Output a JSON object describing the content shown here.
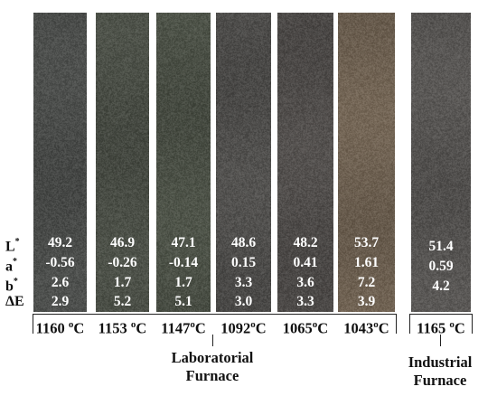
{
  "row_labels": {
    "L": "L",
    "a": "a",
    "b": "b",
    "dE": "ΔE",
    "star": "*"
  },
  "tiles": [
    {
      "L": "49.2",
      "a": "-0.56",
      "b": "2.6",
      "dE": "2.9",
      "temp": "1160",
      "unit": "C",
      "deg": "o",
      "color": "#4a4c4a"
    },
    {
      "L": "46.9",
      "a": "-0.26",
      "b": "1.7",
      "dE": "5.2",
      "temp": "1153",
      "unit": "C",
      "deg": "o",
      "color": "#4a4e46"
    },
    {
      "L": "47.1",
      "a": "-0.14",
      "b": "1.7",
      "dE": "5.1",
      "temp": "1147",
      "unit": "C",
      "deg": "o",
      "color": "#4b5046"
    },
    {
      "L": "48.6",
      "a": "0.15",
      "b": "3.3",
      "dE": "3.0",
      "temp": "1092",
      "unit": "C",
      "deg": "o",
      "color": "#4f4e4c"
    },
    {
      "L": "48.2",
      "a": "0.41",
      "b": "3.6",
      "dE": "3.3",
      "temp": "1065",
      "unit": "C",
      "deg": "o",
      "color": "#504d4b"
    },
    {
      "L": "53.7",
      "a": "1.61",
      "b": "7.2",
      "dE": "3.9",
      "temp": "1043",
      "unit": "C",
      "deg": "o",
      "color": "#6e6152"
    },
    {
      "L": "51.4",
      "a": "0.59",
      "b": "4.2",
      "dE": "",
      "temp": "1165",
      "unit": "C",
      "deg": "o",
      "color": "#565452"
    }
  ],
  "groups": {
    "lab_line1": "Laboratorial",
    "lab_line2": "Furnace",
    "ind_line1": "Industrial",
    "ind_line2": "Furnace"
  }
}
